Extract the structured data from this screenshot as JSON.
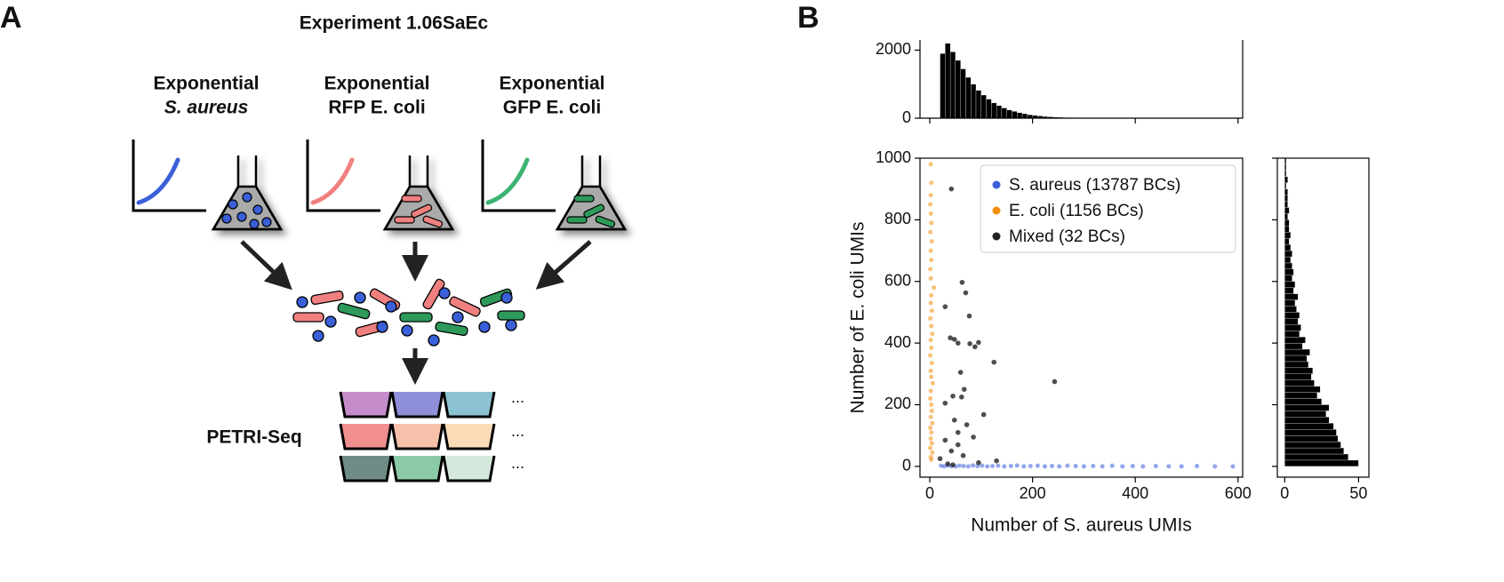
{
  "panel_a": {
    "label": "A",
    "title": "Experiment 1.06SaEc",
    "conditions": [
      {
        "line1": "Exponential",
        "line2": "S. aureus"
      },
      {
        "line1": "Exponential",
        "line2": "RFP E. coli"
      },
      {
        "line1": "Exponential",
        "line2": "GFP E. coli"
      }
    ],
    "method": "PETRI-Seq",
    "ellipsis": "..."
  },
  "panel_b": {
    "label": "B"
  },
  "chart_data": [
    {
      "type": "scatter",
      "xlabel": "Number of S. aureus UMIs",
      "ylabel": "Number of E. coli UMIs",
      "xlim": [
        -19,
        609
      ],
      "ylim": [
        -35,
        1000
      ],
      "xticks": [
        0,
        200,
        400,
        600
      ],
      "yticks": [
        0,
        200,
        400,
        600,
        800,
        1000
      ],
      "legend": "upper right",
      "series": [
        {
          "name": "S. aureus (13787 BCs)",
          "color": "#3a5fd9",
          "x": [
            22,
            28,
            35,
            42,
            50,
            58,
            66,
            75,
            84,
            93,
            102,
            112,
            122,
            133,
            145,
            158,
            170,
            183,
            196,
            210,
            224,
            238,
            252,
            268,
            284,
            300,
            318,
            336,
            355,
            375,
            395,
            415,
            440,
            465,
            490,
            520,
            555,
            590
          ],
          "y": [
            2,
            0,
            3,
            1,
            0,
            2,
            1,
            0,
            3,
            1,
            2,
            0,
            1,
            2,
            0,
            1,
            3,
            0,
            1,
            2,
            0,
            1,
            0,
            2,
            1,
            0,
            1,
            0,
            2,
            0,
            1,
            0,
            1,
            0,
            0,
            1,
            0,
            0
          ]
        },
        {
          "name": "E. coli (1156 BCs)",
          "color": "#f28e0c",
          "x": [
            3,
            2,
            5,
            1,
            4,
            2,
            3,
            1,
            5,
            2,
            4,
            3,
            1,
            2,
            6,
            3,
            2,
            4,
            1,
            3,
            2,
            5,
            3,
            1,
            4,
            2,
            3,
            8,
            2,
            1,
            3,
            2,
            4,
            1,
            3,
            2,
            1,
            2,
            3,
            2
          ],
          "y": [
            22,
            30,
            45,
            60,
            75,
            90,
            110,
            125,
            140,
            160,
            180,
            200,
            220,
            245,
            270,
            290,
            310,
            335,
            360,
            385,
            410,
            430,
            455,
            480,
            505,
            530,
            555,
            580,
            610,
            640,
            670,
            700,
            730,
            760,
            790,
            820,
            850,
            880,
            920,
            980
          ]
        },
        {
          "name": "Mixed (32 BCs)",
          "color": "#222222",
          "x": [
            42,
            63,
            70,
            30,
            77,
            40,
            48,
            55,
            78,
            88,
            95,
            125,
            243,
            60,
            67,
            45,
            62,
            30,
            105,
            48,
            72,
            55,
            85,
            30,
            55,
            42,
            65,
            20,
            130,
            95,
            35,
            45
          ],
          "y": [
            900,
            597,
            563,
            518,
            488,
            417,
            412,
            400,
            398,
            388,
            402,
            338,
            275,
            305,
            250,
            228,
            225,
            205,
            168,
            150,
            135,
            110,
            95,
            85,
            70,
            50,
            35,
            25,
            18,
            12,
            8,
            5
          ]
        }
      ]
    },
    {
      "type": "histogram",
      "color": "#000000",
      "xlim": [
        -19,
        609
      ],
      "xticks": [
        0,
        200,
        400,
        600
      ],
      "ylim": [
        0,
        2300
      ],
      "yticks": [
        0,
        2000
      ],
      "bins": [
        20,
        30,
        40,
        50,
        60,
        70,
        80,
        90,
        100,
        110,
        120,
        130,
        140,
        150,
        160,
        170,
        180,
        190,
        200,
        210,
        220,
        230,
        240,
        250,
        260,
        270,
        280,
        290,
        300
      ],
      "values": [
        1900,
        2200,
        1950,
        1700,
        1450,
        1200,
        1000,
        820,
        680,
        560,
        450,
        370,
        300,
        240,
        200,
        160,
        130,
        100,
        80,
        65,
        50,
        40,
        30,
        25,
        20,
        15,
        12,
        10
      ]
    },
    {
      "type": "histogram",
      "orientation": "horizontal",
      "color": "#000000",
      "xlim": [
        -5,
        57
      ],
      "xticks": [
        0,
        50
      ],
      "ylim": [
        -35,
        1000
      ],
      "yticks": [
        0,
        200,
        400,
        600,
        800,
        1000
      ],
      "bins": [
        0,
        20,
        40,
        60,
        80,
        100,
        120,
        140,
        160,
        180,
        200,
        220,
        240,
        260,
        280,
        300,
        320,
        340,
        360,
        380,
        400,
        420,
        440,
        460,
        480,
        500,
        520,
        540,
        560,
        580,
        600,
        620,
        640,
        660,
        680,
        700,
        720,
        740,
        760,
        780,
        800,
        820,
        840,
        860,
        880,
        900,
        920,
        940,
        960,
        980,
        1000
      ],
      "values": [
        50,
        43,
        40,
        38,
        36,
        35,
        33,
        30,
        28,
        30,
        25,
        22,
        24,
        20,
        18,
        19,
        16,
        15,
        17,
        12,
        14,
        10,
        11,
        9,
        10,
        8,
        7,
        9,
        6,
        7,
        5,
        6,
        5,
        4,
        5,
        4,
        3,
        4,
        3,
        3,
        2,
        3,
        2,
        2,
        2,
        1,
        2,
        1,
        1,
        1
      ]
    }
  ]
}
